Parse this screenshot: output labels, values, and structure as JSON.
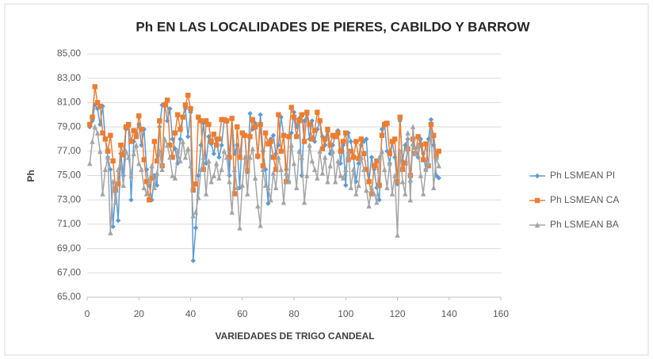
{
  "chart_data": {
    "type": "line",
    "title": "Ph EN LAS LOCALIDADES DE PIERES, CABILDO Y BARROW",
    "x_label": "VARIEDADES DE TRIGO CANDEAL",
    "y_label": "Ph",
    "grid": true,
    "legend": "right",
    "xlim": [
      0,
      160
    ],
    "xticks": [
      0,
      20,
      40,
      60,
      80,
      100,
      120,
      140,
      160
    ],
    "ylim": [
      65,
      85
    ],
    "yticks": [
      {
        "value": 65,
        "label": "65,00"
      },
      {
        "value": 67,
        "label": "67,00"
      },
      {
        "value": 69,
        "label": "69,00"
      },
      {
        "value": 71,
        "label": "71,00"
      },
      {
        "value": 73,
        "label": "73,00"
      },
      {
        "value": 75,
        "label": "75,00"
      },
      {
        "value": 77,
        "label": "77,00"
      },
      {
        "value": 79,
        "label": "79,00"
      },
      {
        "value": 81,
        "label": "81,00"
      },
      {
        "value": 83,
        "label": "83,00"
      },
      {
        "value": 85,
        "label": "85,00"
      }
    ],
    "x": [
      1,
      2,
      3,
      4,
      5,
      6,
      7,
      8,
      9,
      10,
      11,
      12,
      13,
      14,
      15,
      16,
      17,
      18,
      19,
      20,
      21,
      22,
      23,
      24,
      25,
      26,
      27,
      28,
      29,
      30,
      31,
      32,
      33,
      34,
      35,
      36,
      37,
      38,
      39,
      40,
      41,
      42,
      43,
      44,
      45,
      46,
      47,
      48,
      49,
      50,
      51,
      52,
      53,
      54,
      55,
      56,
      57,
      58,
      59,
      60,
      61,
      62,
      63,
      64,
      65,
      66,
      67,
      68,
      69,
      70,
      71,
      72,
      73,
      74,
      75,
      76,
      77,
      78,
      79,
      80,
      81,
      82,
      83,
      84,
      85,
      86,
      87,
      88,
      89,
      90,
      91,
      92,
      93,
      94,
      95,
      96,
      97,
      98,
      99,
      100,
      101,
      102,
      103,
      104,
      105,
      106,
      107,
      108,
      109,
      110,
      111,
      112,
      113,
      114,
      115,
      116,
      117,
      118,
      119,
      120,
      121,
      122,
      123,
      124,
      125,
      126,
      127,
      128,
      129,
      130,
      131,
      132,
      133,
      134,
      135,
      136
    ],
    "series": [
      {
        "name": "Ph LSMEAN PI",
        "color": "#5b9bd5",
        "marker": "diamond",
        "values": [
          79.0,
          79.5,
          80.8,
          80.5,
          79.2,
          80.7,
          78.0,
          76.5,
          75.5,
          70.8,
          74.0,
          71.3,
          76.8,
          75.0,
          78.8,
          79.0,
          73.0,
          77.8,
          78.5,
          79.2,
          77.5,
          78.8,
          75.5,
          74.2,
          73.0,
          75.0,
          74.2,
          79.0,
          80.8,
          80.9,
          79.5,
          80.5,
          78.0,
          77.2,
          76.0,
          78.0,
          79.8,
          80.5,
          78.2,
          80.2,
          68.0,
          70.7,
          75.0,
          77.5,
          79.3,
          76.0,
          78.2,
          77.6,
          76.8,
          78.0,
          76.5,
          77.5,
          79.6,
          79.4,
          75.0,
          79.6,
          76.8,
          77.5,
          74.0,
          78.5,
          78.3,
          75.3,
          80.1,
          78.8,
          79.3,
          76.5,
          80.0,
          77.0,
          75.5,
          72.7,
          78.0,
          78.3,
          76.8,
          77.5,
          79.8,
          78.3,
          75.5,
          74.5,
          78.5,
          80.2,
          79.0,
          79.7,
          75.0,
          79.5,
          80.0,
          78.0,
          79.5,
          77.8,
          78.8,
          79.5,
          78.2,
          77.5,
          78.6,
          76.8,
          77.5,
          78.3,
          78.7,
          76.0,
          77.5,
          74.2,
          78.5,
          77.8,
          76.5,
          74.5,
          76.0,
          77.5,
          77.8,
          78.0,
          74.5,
          76.5,
          75.5,
          74.0,
          73.0,
          78.8,
          79.3,
          77.0,
          76.0,
          77.8,
          76.5,
          74.3,
          79.5,
          76.2,
          77.5,
          78.0,
          74.5,
          77.5,
          77.2,
          76.5,
          78.0,
          76.8,
          75.5,
          78.0,
          79.6,
          77.5,
          75.0,
          74.8
        ]
      },
      {
        "name": "Ph LSMEAN CA",
        "color": "#ed7d31",
        "marker": "square",
        "values": [
          79.2,
          79.8,
          82.3,
          81.0,
          80.7,
          78.5,
          78.0,
          77.0,
          78.3,
          76.2,
          73.8,
          74.3,
          77.5,
          76.7,
          79.0,
          79.2,
          77.8,
          78.7,
          78.2,
          79.9,
          78.8,
          76.3,
          74.5,
          73.0,
          74.8,
          77.8,
          76.2,
          79.5,
          75.8,
          80.8,
          81.2,
          77.5,
          76.5,
          78.5,
          80.0,
          78.8,
          79.8,
          80.8,
          81.6,
          80.5,
          73.8,
          74.3,
          79.8,
          79.5,
          75.5,
          79.5,
          79.2,
          77.8,
          78.4,
          77.5,
          78.0,
          79.6,
          79.6,
          79.5,
          76.5,
          79.7,
          73.5,
          79.0,
          76.5,
          78.5,
          78.3,
          75.4,
          78.2,
          79.6,
          79.0,
          76.6,
          79.2,
          75.8,
          78.5,
          77.6,
          77.8,
          76.5,
          75.5,
          80.0,
          77.0,
          78.3,
          74.5,
          78.2,
          80.6,
          79.8,
          78.2,
          79.5,
          80.0,
          77.8,
          80.2,
          79.2,
          78.0,
          78.7,
          80.2,
          79.5,
          77.2,
          78.0,
          78.8,
          77.5,
          78.3,
          78.2,
          78.5,
          77.0,
          77.8,
          78.5,
          76.3,
          77.0,
          76.5,
          77.8,
          76.4,
          78.0,
          76.8,
          75.5,
          74.5,
          73.5,
          75.8,
          76.2,
          74.2,
          78.3,
          79.2,
          79.3,
          76.8,
          77.8,
          78.0,
          74.5,
          79.8,
          75.5,
          76.0,
          77.2,
          75.0,
          78.0,
          76.8,
          78.2,
          77.5,
          76.3,
          77.6,
          75.8,
          79.2,
          78.3,
          76.6,
          77.0
        ]
      },
      {
        "name": "Ph LSMEAN BA",
        "color": "#a5a5a5",
        "marker": "triangle",
        "values": [
          76.0,
          77.8,
          79.0,
          78.5,
          77.0,
          73.5,
          75.5,
          76.5,
          70.3,
          74.5,
          72.8,
          75.5,
          76.0,
          74.2,
          77.0,
          76.5,
          75.0,
          76.8,
          77.5,
          76.0,
          75.5,
          74.0,
          73.5,
          74.5,
          75.8,
          74.0,
          75.2,
          77.0,
          75.5,
          78.0,
          77.5,
          76.5,
          75.0,
          74.8,
          77.0,
          76.2,
          77.8,
          76.5,
          77.2,
          75.8,
          71.7,
          72.0,
          73.2,
          75.5,
          76.5,
          73.5,
          76.2,
          74.5,
          75.0,
          76.0,
          74.8,
          75.5,
          77.0,
          76.5,
          74.5,
          72.0,
          75.5,
          74.0,
          70.7,
          74.2,
          76.5,
          73.5,
          76.5,
          77.2,
          74.8,
          72.5,
          70.9,
          75.5,
          74.2,
          74.0,
          73.0,
          75.2,
          74.0,
          76.5,
          75.5,
          72.8,
          75.2,
          74.5,
          77.5,
          76.0,
          74.0,
          77.0,
          76.5,
          72.8,
          75.0,
          77.5,
          76.2,
          75.5,
          74.8,
          77.0,
          75.2,
          76.5,
          74.5,
          75.8,
          77.0,
          74.5,
          76.2,
          75.0,
          74.8,
          75.5,
          77.0,
          74.0,
          75.5,
          73.5,
          74.2,
          76.5,
          75.5,
          73.8,
          72.5,
          74.0,
          73.5,
          72.8,
          76.5,
          77.0,
          75.5,
          74.0,
          76.0,
          73.5,
          75.0,
          70.1,
          77.0,
          74.5,
          73.5,
          78.5,
          73.0,
          79.0,
          76.8,
          77.5,
          75.0,
          73.5,
          75.5,
          76.0,
          78.5,
          74.0,
          76.5,
          75.8
        ]
      }
    ]
  }
}
